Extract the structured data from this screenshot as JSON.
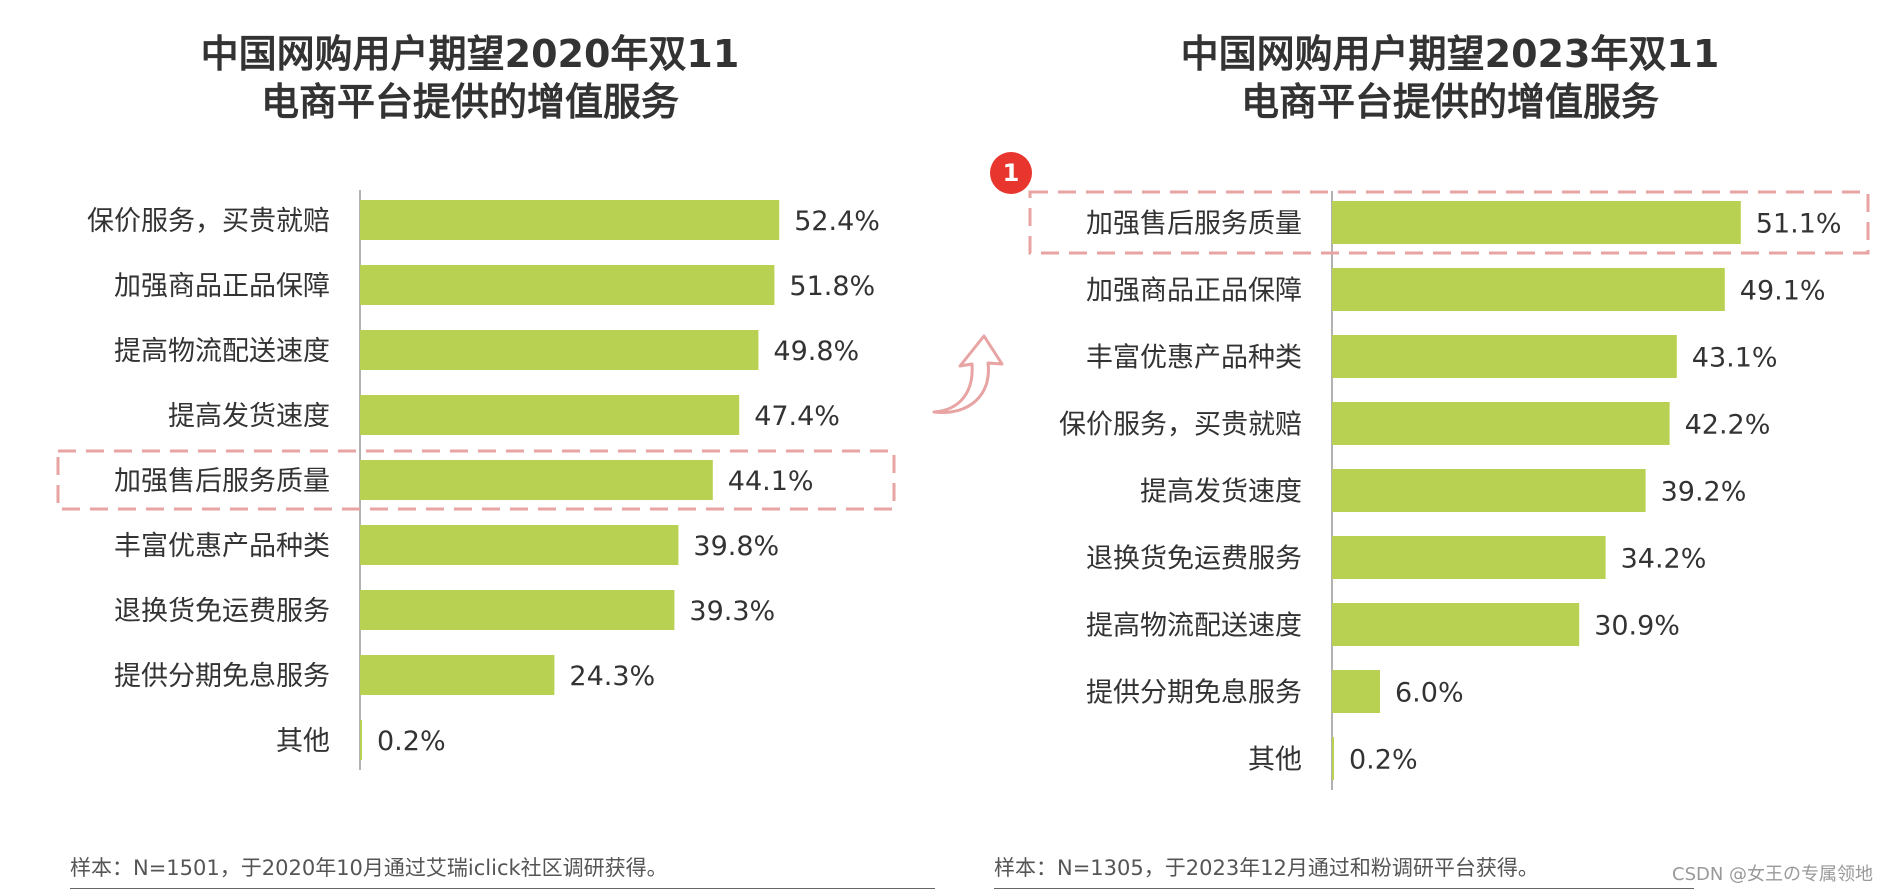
{
  "chart_data": [
    {
      "type": "bar",
      "orientation": "horizontal",
      "title_line1": "中国网购用户期望2020年双11",
      "title_line2": "电商平台提供的增值服务",
      "categories": [
        "保价服务，买贵就赔",
        "加强商品正品保障",
        "提高物流配送速度",
        "提高发货速度",
        "加强售后服务质量",
        "丰富优惠产品种类",
        "退换货免运费服务",
        "提供分期免息服务",
        "其他"
      ],
      "values": [
        52.4,
        51.8,
        49.8,
        47.4,
        44.1,
        39.8,
        39.3,
        24.3,
        0.2
      ],
      "value_labels": [
        "52.4%",
        "51.8%",
        "49.8%",
        "47.4%",
        "44.1%",
        "39.8%",
        "39.3%",
        "24.3%",
        "0.2%"
      ],
      "highlight_index": 4,
      "bar_color": "#b8d152",
      "highlight_color": "#e8a3a3",
      "grid": false,
      "footnote": "样本：N=1501，于2020年10月通过艾瑞iclick社区调研获得。"
    },
    {
      "type": "bar",
      "orientation": "horizontal",
      "title_line1": "中国网购用户期望2023年双11",
      "title_line2": "电商平台提供的增值服务",
      "categories": [
        "加强售后服务质量",
        "加强商品正品保障",
        "丰富优惠产品种类",
        "保价服务，买贵就赔",
        "提高发货速度",
        "退换货免运费服务",
        "提高物流配送速度",
        "提供分期免息服务",
        "其他"
      ],
      "values": [
        51.1,
        49.1,
        43.1,
        42.2,
        39.2,
        34.2,
        30.9,
        6.0,
        0.2
      ],
      "value_labels": [
        "51.1%",
        "49.1%",
        "43.1%",
        "42.2%",
        "39.2%",
        "34.2%",
        "30.9%",
        "6.0%",
        "0.2%"
      ],
      "highlight_index": 0,
      "badge": "1",
      "bar_color": "#b8d152",
      "highlight_color": "#e8a3a3",
      "badge_color": "#e8352d",
      "grid": false,
      "footnote": "样本：N=1305，于2023年12月通过和粉调研平台获得。"
    }
  ],
  "watermark": "CSDN @女王の专属领地",
  "icons": {
    "arrow": "curved-up-arrow-icon"
  }
}
